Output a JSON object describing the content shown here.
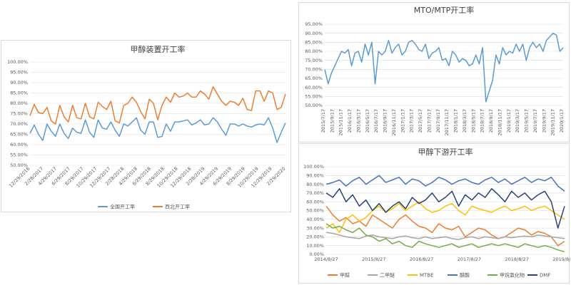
{
  "charts": [
    {
      "type": "line",
      "title": "甲醇装置开工率",
      "categories": [
        "12/29/2016",
        "2/28/2017",
        "4/29/2017",
        "6/29/2017",
        "8/29/2017",
        "10/29/2017",
        "12/29/2017",
        "2/28/2018",
        "4/29/2018",
        "6/29/2018",
        "8/29/2018",
        "10/29/2018",
        "12/29/2018",
        "2/28/2019",
        "4/29/2019",
        "6/29/2019",
        "8/29/2019",
        "10/29/2019",
        "12/29/2019",
        "2/29/2020"
      ],
      "y_ticks": [
        "50.00%",
        "55.00%",
        "60.00%",
        "65.00%",
        "70.00%",
        "75.00%",
        "80.00%",
        "85.00%",
        "90.00%",
        "95.00%",
        "100.00%"
      ],
      "ylim": [
        50,
        100
      ],
      "legend_position": "bottom",
      "colors": [
        "#5b9bd5",
        "#ed7d31"
      ],
      "series": [
        {
          "name": "全国开工率",
          "values": [
            65.5,
            69.5,
            65,
            62,
            70,
            66.5,
            64,
            70,
            65.5,
            63,
            68,
            66,
            65.5,
            72,
            66,
            63.5,
            72,
            68,
            67.5,
            71,
            67,
            64,
            70,
            69,
            71,
            73,
            67,
            65,
            71,
            71,
            63.5,
            64,
            70,
            66.5,
            71,
            71,
            71.5,
            72,
            69.5,
            70.5,
            72,
            69.5,
            70,
            73,
            71,
            67.5,
            64.5,
            70,
            70,
            69,
            70,
            69,
            68.5,
            69.5,
            70,
            69.5,
            73,
            68,
            61,
            66,
            70.5
          ]
        },
        {
          "name": "西北开工率",
          "values": [
            74,
            79.5,
            75.5,
            75,
            78,
            71.5,
            70,
            79,
            73.5,
            71,
            79,
            73,
            72.5,
            80,
            73.5,
            72.5,
            80.5,
            78.5,
            77,
            81,
            71.5,
            70.5,
            79,
            80,
            83,
            80.5,
            76,
            72.5,
            82,
            80,
            72,
            79,
            83,
            80.5,
            85,
            83,
            83.5,
            85,
            83,
            83,
            86,
            84.5,
            82,
            88,
            84.5,
            81,
            79,
            81,
            80.5,
            79,
            82.5,
            77,
            76.5,
            86,
            86,
            81,
            86,
            85,
            77,
            78,
            84.5
          ]
        }
      ]
    },
    {
      "type": "line",
      "title": "MTO/MTP开工率",
      "categories": [
        "2015/7/17",
        "2015/9/17",
        "2015/11/17",
        "2016/1/17",
        "2016/3/17",
        "2016/5/17",
        "2016/7/17",
        "2016/9/17",
        "2016/11/17",
        "2017/1/17",
        "2017/3/17",
        "2017/5/17",
        "2017/7/17",
        "2017/9/17",
        "2017/11/17",
        "2018/1/17",
        "2018/3/17",
        "2018/5/17",
        "2018/7/17",
        "2018/9/17",
        "2018/11/17",
        "2019/1/17",
        "2019/3/17",
        "2019/5/17",
        "2019/7/17",
        "2019/9/17",
        "2019/11/17",
        "2020/1/17"
      ],
      "y_ticks": [
        "50.00%",
        "55.00%",
        "60.00%",
        "65.00%",
        "70.00%",
        "75.00%",
        "80.00%",
        "85.00%",
        "90.00%",
        "95.00%"
      ],
      "ylim": [
        50,
        95
      ],
      "colors": [
        "#5b9bd5"
      ],
      "series": [
        {
          "name": "",
          "values": [
            70,
            62,
            68,
            72,
            76,
            80,
            79,
            81,
            72,
            79,
            80,
            74,
            84,
            78,
            85,
            62,
            80,
            78,
            80,
            86,
            79,
            82,
            84,
            78,
            80,
            85,
            86,
            84,
            81,
            80,
            84,
            76,
            79,
            80,
            82,
            75,
            76,
            72,
            80,
            78,
            74,
            76,
            75,
            72,
            73,
            78,
            73,
            82,
            52,
            58,
            64,
            78,
            73,
            82,
            78,
            80,
            79,
            84,
            80,
            84,
            75,
            82,
            85,
            82,
            84,
            80,
            86,
            88,
            90,
            89,
            80,
            82
          ]
        }
      ]
    },
    {
      "type": "line",
      "title": "甲醇下游开工率",
      "categories": [
        "2014/8/27",
        "2015/8/27",
        "2016/8/27",
        "2017/8/27",
        "2018/8/27",
        "2019/8/27"
      ],
      "y_ticks": [
        "0.00%",
        "10.00%",
        "20.00%",
        "30.00%",
        "40.00%",
        "50.00%",
        "60.00%",
        "70.00%",
        "80.00%",
        "90.00%",
        "100.00%"
      ],
      "ylim": [
        0,
        100
      ],
      "legend_position": "bottom",
      "colors": [
        "#ed7d31",
        "#a5a5a5",
        "#ffc000",
        "#4472c4",
        "#70ad47",
        "#264478"
      ],
      "series": [
        {
          "name": "甲醛",
          "values": [
            55,
            45,
            38,
            42,
            35,
            38,
            32,
            45,
            40,
            35,
            30,
            40,
            45,
            38,
            32,
            30,
            25,
            35,
            30,
            28,
            32,
            20,
            25,
            30,
            28,
            22,
            18,
            20,
            25,
            30,
            28,
            22,
            26,
            24,
            20,
            10,
            15
          ]
        },
        {
          "name": "二甲醚",
          "values": [
            25,
            24,
            22,
            20,
            19,
            18,
            21,
            22,
            20,
            19,
            18,
            20,
            21,
            19,
            18,
            20,
            18,
            19,
            20,
            18,
            17,
            19,
            20,
            18,
            20,
            19,
            18,
            20,
            19,
            20,
            21,
            20,
            22,
            21,
            20,
            19,
            18
          ]
        },
        {
          "name": "MTBE",
          "values": [
            30,
            35,
            25,
            40,
            45,
            38,
            42,
            50,
            55,
            48,
            52,
            58,
            50,
            55,
            60,
            52,
            48,
            50,
            55,
            58,
            50,
            45,
            55,
            52,
            50,
            48,
            52,
            55,
            50,
            52,
            55,
            50,
            53,
            55,
            50,
            45,
            40
          ]
        },
        {
          "name": "醋酸",
          "values": [
            80,
            82,
            85,
            78,
            84,
            88,
            80,
            85,
            90,
            82,
            85,
            88,
            80,
            86,
            84,
            78,
            82,
            88,
            85,
            80,
            84,
            86,
            82,
            80,
            85,
            88,
            82,
            86,
            80,
            84,
            88,
            82,
            86,
            84,
            88,
            78,
            72
          ]
        },
        {
          "name": "甲烷氯化物",
          "values": [
            35,
            30,
            32,
            28,
            25,
            30,
            22,
            20,
            15,
            18,
            12,
            15,
            10,
            8,
            15,
            12,
            10,
            8,
            10,
            12,
            8,
            10,
            12,
            8,
            10,
            12,
            10,
            12,
            10,
            8,
            12,
            10,
            8,
            10,
            8,
            5,
            3
          ]
        },
        {
          "name": "DMF",
          "values": [
            70,
            65,
            75,
            60,
            68,
            55,
            62,
            50,
            58,
            48,
            55,
            60,
            52,
            65,
            58,
            62,
            70,
            60,
            65,
            72,
            55,
            68,
            62,
            70,
            65,
            75,
            68,
            60,
            72,
            65,
            70,
            62,
            68,
            72,
            60,
            30,
            55
          ]
        }
      ]
    }
  ]
}
